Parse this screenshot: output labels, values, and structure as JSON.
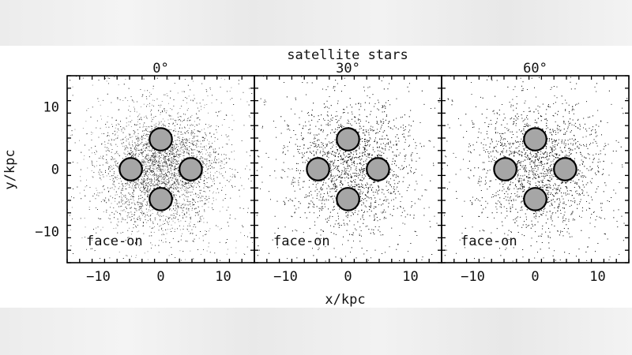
{
  "chart_data": {
    "type": "scatter",
    "title": "satellite stars",
    "xlabel": "x/kpc",
    "ylabel": "y/kpc",
    "xlim": [
      -15,
      15
    ],
    "ylim": [
      -15,
      15
    ],
    "xticks": [
      -10,
      0,
      10
    ],
    "yticks": [
      -10,
      0,
      10
    ],
    "grid": false,
    "panels": [
      {
        "title": "0°",
        "annotation": "face-on",
        "distribution": {
          "center": [
            0,
            0
          ],
          "sigma_x": 4.6,
          "sigma_y": 4.6,
          "rotation_deg": 0,
          "tail_x": 0,
          "tail_y": 0
        },
        "apertures": [
          {
            "x": 0,
            "y": 4.8,
            "r": 1.8
          },
          {
            "x": -4.8,
            "y": 0,
            "r": 1.8
          },
          {
            "x": 4.8,
            "y": 0,
            "r": 1.8
          },
          {
            "x": 0,
            "y": -4.8,
            "r": 1.8
          }
        ]
      },
      {
        "title": "30°",
        "annotation": "face-on",
        "distribution": {
          "center": [
            0,
            0
          ],
          "sigma_x": 4.6,
          "sigma_y": 5.2,
          "rotation_deg": 45,
          "tail_x": 2.5,
          "tail_y": 3.5
        },
        "apertures": [
          {
            "x": 0,
            "y": 4.8,
            "r": 1.8
          },
          {
            "x": -4.8,
            "y": 0,
            "r": 1.8
          },
          {
            "x": 4.8,
            "y": 0,
            "r": 1.8
          },
          {
            "x": 0,
            "y": -4.8,
            "r": 1.8
          }
        ]
      },
      {
        "title": "60°",
        "annotation": "face-on",
        "distribution": {
          "center": [
            0,
            0
          ],
          "sigma_x": 4.6,
          "sigma_y": 5.4,
          "rotation_deg": 45,
          "tail_x": 3,
          "tail_y": 3
        },
        "apertures": [
          {
            "x": 0,
            "y": 4.8,
            "r": 1.8
          },
          {
            "x": -4.8,
            "y": 0,
            "r": 1.8
          },
          {
            "x": 4.8,
            "y": 0,
            "r": 1.8
          },
          {
            "x": 0,
            "y": -4.8,
            "r": 1.8
          }
        ]
      }
    ],
    "colors": {
      "points": "#000000",
      "aperture_fill": "#a6a6a6",
      "aperture_stroke": "#000000"
    }
  }
}
